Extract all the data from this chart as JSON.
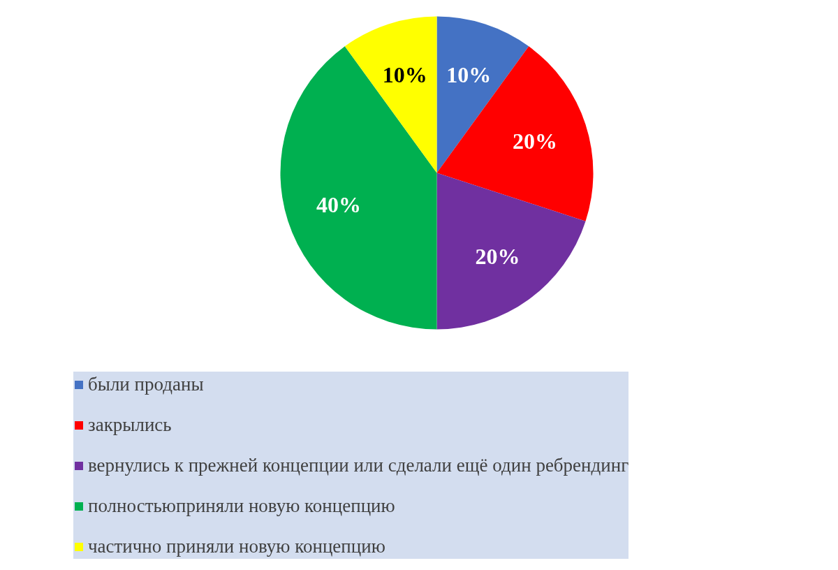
{
  "chart_data": {
    "type": "pie",
    "categories": [
      "были проданы",
      "закрылись",
      "вернулись к прежней концепции или сделали ещё один ребрендинг",
      "полностьюприняли новую концепцию",
      "частично приняли новую концепцию"
    ],
    "values": [
      10,
      20,
      20,
      40,
      10
    ],
    "colors": [
      "#4472c4",
      "#ff0000",
      "#7030a0",
      "#00b050",
      "#ffff00"
    ],
    "value_labels": [
      "10%",
      "20%",
      "20%",
      "40%",
      "10%"
    ],
    "legend": "bottom"
  }
}
